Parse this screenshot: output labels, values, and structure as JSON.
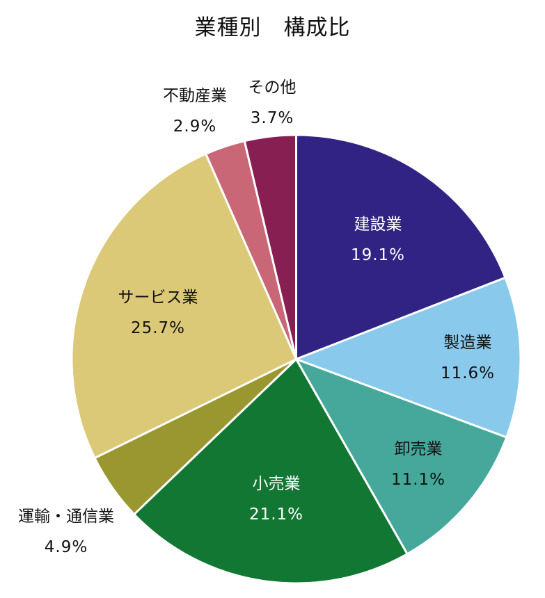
{
  "chart_data": {
    "type": "pie",
    "title": "業種別　構成比",
    "start_angle_deg": 0,
    "direction": "clockwise",
    "slices": [
      {
        "label": "建設業",
        "value": 19.1,
        "display": "19.1%",
        "color": "#312383",
        "text_color": "#ffffff",
        "inside": true
      },
      {
        "label": "製造業",
        "value": 11.6,
        "display": "11.6%",
        "color": "#88c9ec",
        "text_color": "#111111",
        "inside": true
      },
      {
        "label": "卸売業",
        "value": 11.1,
        "display": "11.1%",
        "color": "#45a89a",
        "text_color": "#111111",
        "inside": true
      },
      {
        "label": "小売業",
        "value": 21.1,
        "display": "21.1%",
        "color": "#137734",
        "text_color": "#ffffff",
        "inside": true
      },
      {
        "label": "運輸・通信業",
        "value": 4.9,
        "display": "4.9%",
        "color": "#9a9731",
        "text_color": "#111111",
        "inside": false
      },
      {
        "label": "サービス業",
        "value": 25.7,
        "display": "25.7%",
        "color": "#dbc978",
        "text_color": "#111111",
        "inside": true
      },
      {
        "label": "不動産業",
        "value": 2.9,
        "display": "2.9%",
        "color": "#c96776",
        "text_color": "#111111",
        "inside": false
      },
      {
        "label": "その他",
        "value": 3.7,
        "display": "3.7%",
        "color": "#871f53",
        "text_color": "#111111",
        "inside": false
      }
    ]
  }
}
